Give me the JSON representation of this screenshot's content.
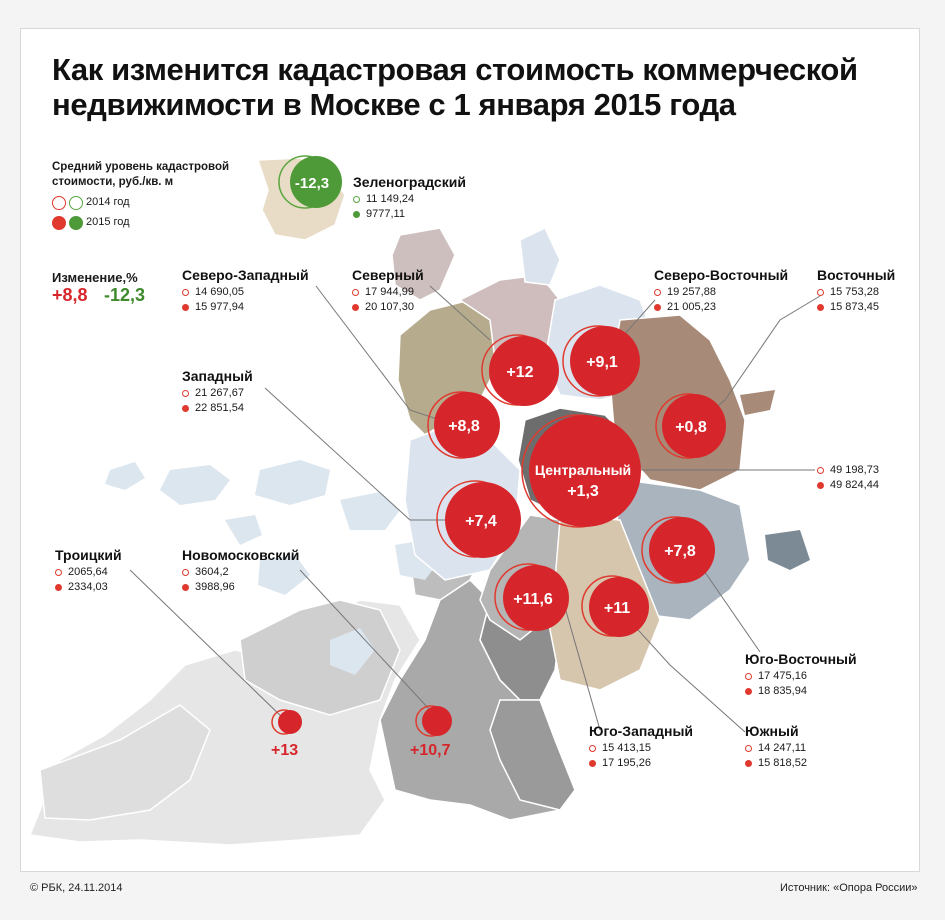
{
  "title": "Как изменится кадастровая стоимость коммерческой недвижимости в Москве с 1 января 2015 года",
  "legend": {
    "title": "Средний уровень кадастровой стоимости, руб./кв. м",
    "year_2014": "2014 год",
    "year_2015": "2015 год"
  },
  "change": {
    "title": "Изменение,%",
    "positive": "+8,8",
    "negative": "-12,3"
  },
  "colors": {
    "increase": "#e03a2e",
    "decrease": "#4e9a39"
  },
  "districts": {
    "zelenogradsky": {
      "name": "Зеленоградский",
      "v2014": "11 149,24",
      "v2015": "9777,11",
      "change": "-12,3"
    },
    "severo_zapadny": {
      "name": "Северо-Западный",
      "v2014": "14 690,05",
      "v2015": "15 977,94",
      "change": "+8,8"
    },
    "severny": {
      "name": "Северный",
      "v2014": "17 944,99",
      "v2015": "20 107,30",
      "change": "+12"
    },
    "severo_vostochny": {
      "name": "Северо-Восточный",
      "v2014": "19 257,88",
      "v2015": "21 005,23",
      "change": "+9,1"
    },
    "vostochny": {
      "name": "Восточный",
      "v2014": "15 753,28",
      "v2015": "15 873,45",
      "change": "+0,8"
    },
    "zapadny": {
      "name": "Западный",
      "v2014": "21 267,67",
      "v2015": "22 851,54",
      "change": "+7,4"
    },
    "centralny": {
      "name": "Центральный",
      "v2014": "49 198,73",
      "v2015": "49 824,44",
      "change": "+1,3"
    },
    "troitsky": {
      "name": "Троицкий",
      "v2014": "2065,64",
      "v2015": "2334,03",
      "change": "+13"
    },
    "novomoskovsky": {
      "name": "Новомосковский",
      "v2014": "3604,2",
      "v2015": "3988,96",
      "change": "+10,7"
    },
    "yugo_vostochny": {
      "name": "Юго-Восточный",
      "v2014": "17 475,16",
      "v2015": "18 835,94",
      "change": "+7,8"
    },
    "yugo_zapadny": {
      "name": "Юго-Западный",
      "v2014": "15 413,15",
      "v2015": "17 195,26",
      "change": "+11,6"
    },
    "yuzhny": {
      "name": "Южный",
      "v2014": "14 247,11",
      "v2015": "15 818,52",
      "change": "+11"
    }
  },
  "footer": {
    "copyright": "© РБК, 24.11.2014",
    "source": "Источник: «Опора России»"
  }
}
